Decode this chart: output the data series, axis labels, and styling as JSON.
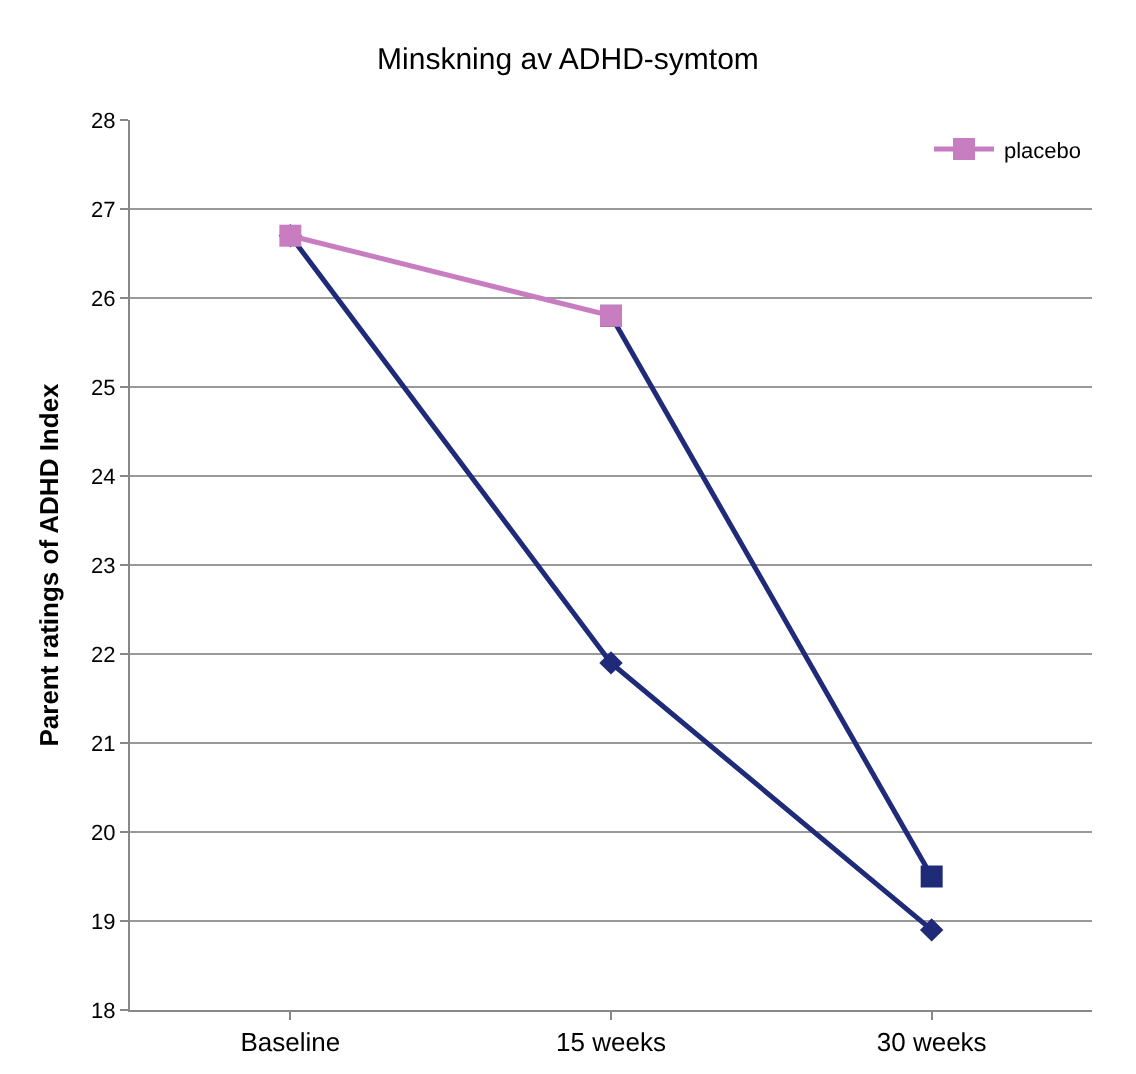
{
  "chart_data": {
    "type": "line",
    "title": "Minskning av ADHD-symtom",
    "ylabel": "Parent ratings of ADHD Index",
    "categories": [
      "Baseline",
      "15 weeks",
      "30 weeks"
    ],
    "ylim": [
      18,
      28
    ],
    "yticks": [
      18,
      19,
      20,
      21,
      22,
      23,
      24,
      25,
      26,
      27,
      28
    ],
    "grid": "y",
    "legend": "top right",
    "series": [
      {
        "color": "#1f2a78",
        "marker": "diamond",
        "values": [
          26.7,
          21.9,
          18.9
        ]
      },
      {
        "color": "#1f2a78",
        "marker": "square",
        "values": [
          null,
          25.8,
          19.5
        ]
      },
      {
        "name": "placebo",
        "color": "#c77dc0",
        "marker": "square",
        "values": [
          26.7,
          25.8,
          null
        ]
      }
    ]
  }
}
